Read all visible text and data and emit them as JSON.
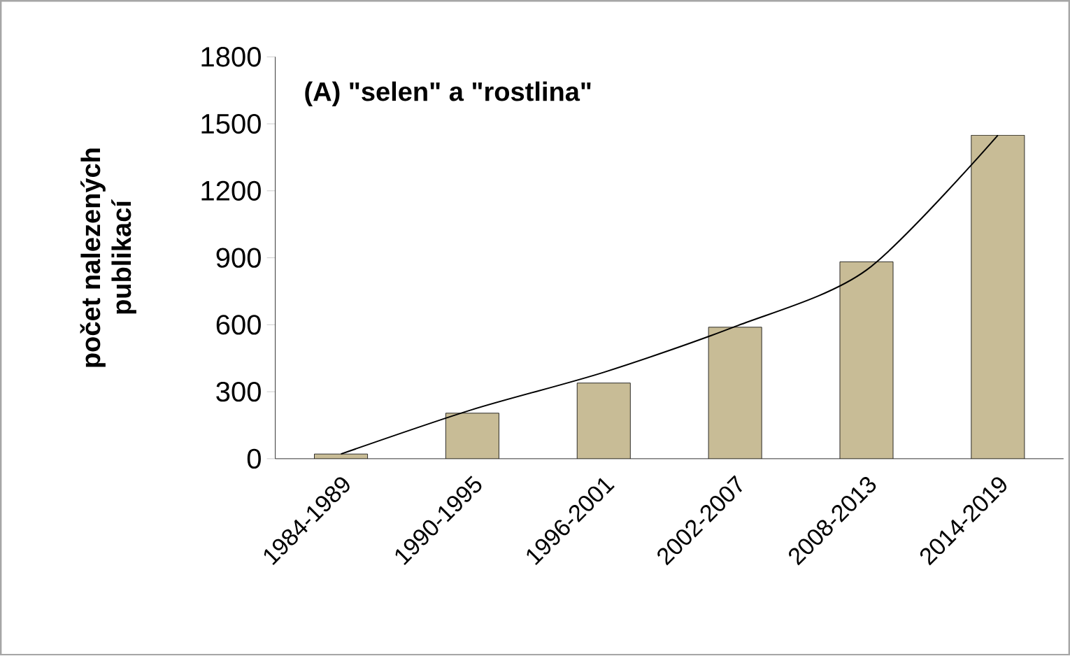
{
  "chart_data": {
    "type": "bar",
    "title": "(A) \"selen\" a \"rostlina\"",
    "ylabel": "počet nalezených publikací",
    "categories": [
      "1984-1989",
      "1990-1995",
      "1996-2001",
      "2002-2007",
      "2008-2013",
      "2014-2019"
    ],
    "series": [
      {
        "color": "#c8bc96",
        "values": [
          21,
          204,
          339,
          589,
          882,
          1449
        ]
      },
      {
        "type": "line",
        "color": "#000000",
        "values": [
          21,
          220,
          387,
          592,
          845,
          1449
        ]
      }
    ],
    "ylim": [
      0,
      1800
    ],
    "yticks": [
      0,
      300,
      600,
      900,
      1200,
      1500,
      1800
    ]
  }
}
